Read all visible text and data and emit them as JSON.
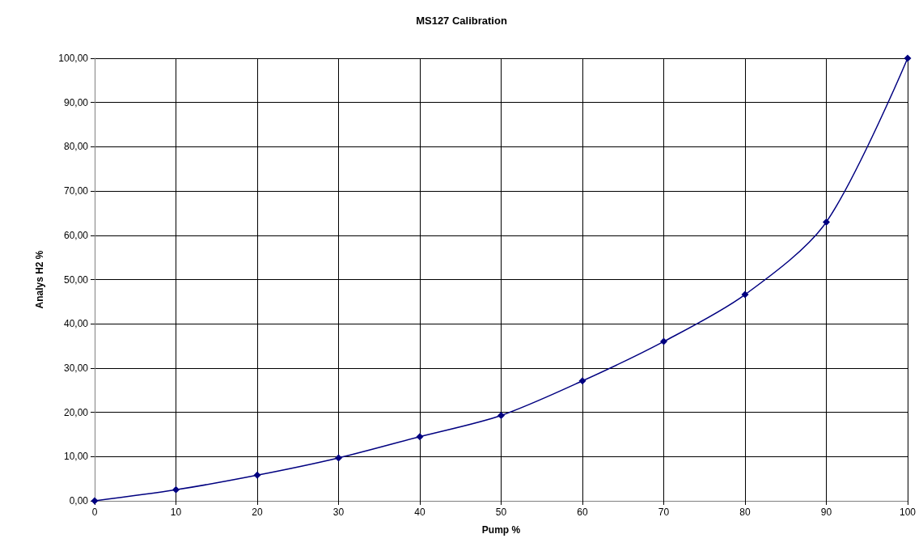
{
  "chart_data": {
    "type": "line",
    "title": "MS127 Calibration",
    "xlabel": "Pump %",
    "ylabel": "Analys H2 %",
    "x": [
      0,
      10,
      20,
      30,
      40,
      50,
      60,
      70,
      80,
      90,
      100
    ],
    "series": [
      {
        "color": "#000080",
        "values": [
          0,
          2.5,
          5.8,
          9.7,
          14.5,
          19.3,
          27.1,
          36.0,
          46.6,
          63.0,
          100
        ]
      }
    ],
    "xlim": [
      0,
      100
    ],
    "xticks": [
      0,
      10,
      20,
      30,
      40,
      50,
      60,
      70,
      80,
      90,
      100
    ],
    "ylim": [
      0,
      100
    ],
    "yticks": [
      {
        "value": 0,
        "label": "0,00"
      },
      {
        "value": 10,
        "label": "10,00"
      },
      {
        "value": 20,
        "label": "20,00"
      },
      {
        "value": 30,
        "label": "30,00"
      },
      {
        "value": 40,
        "label": "40,00"
      },
      {
        "value": 50,
        "label": "50,00"
      },
      {
        "value": 60,
        "label": "60,00"
      },
      {
        "value": 70,
        "label": "70,00"
      },
      {
        "value": 80,
        "label": "80,00"
      },
      {
        "value": 90,
        "label": "90,00"
      },
      {
        "value": 100,
        "label": "100,00"
      }
    ],
    "grid": true,
    "marker": "diamond",
    "line_style": "solid"
  }
}
